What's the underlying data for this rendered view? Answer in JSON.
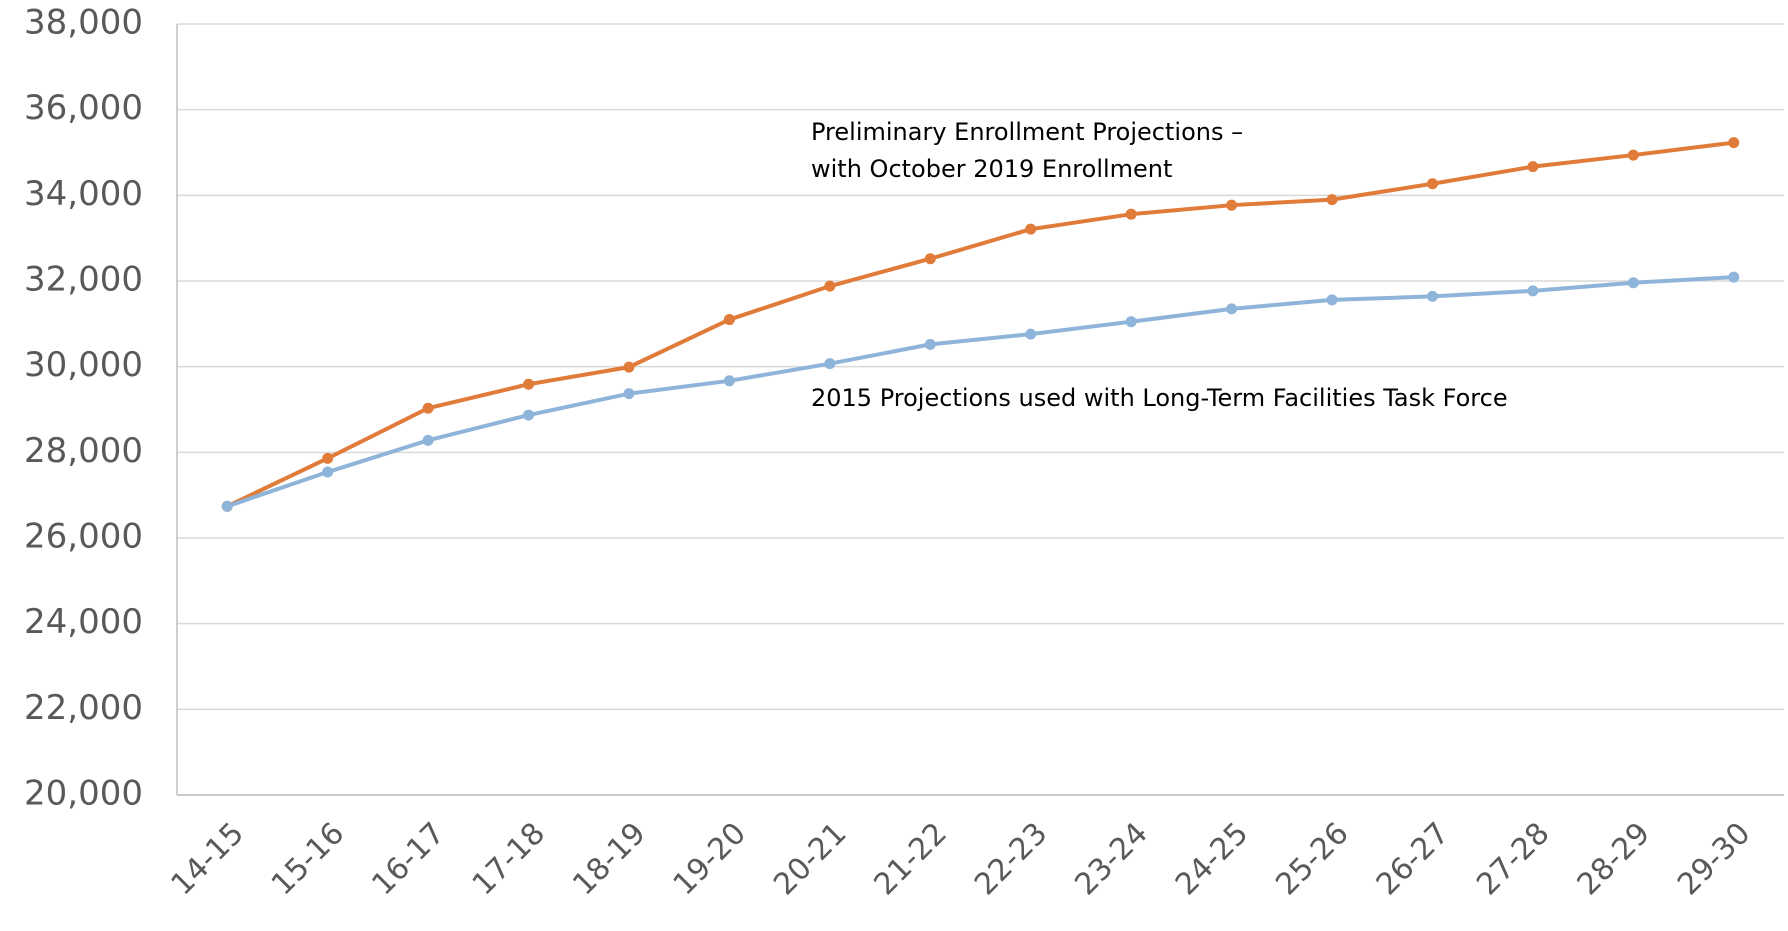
{
  "chart_data": {
    "type": "line",
    "categories": [
      "14-15",
      "15-16",
      "16-17",
      "17-18",
      "18-19",
      "19-20",
      "20-21",
      "21-22",
      "22-23",
      "23-24",
      "24-25",
      "25-26",
      "26-27",
      "27-28",
      "28-29",
      "29-30"
    ],
    "series": [
      {
        "color": "#e07b39",
        "values": [
          26740,
          27860,
          29030,
          29590,
          29990,
          31100,
          31880,
          32520,
          33210,
          33560,
          33770,
          33900,
          34270,
          34670,
          34940,
          35230
        ]
      },
      {
        "color": "#8fb4d9",
        "values": [
          26740,
          27540,
          28280,
          28870,
          29370,
          29670,
          30070,
          30520,
          30760,
          31050,
          31350,
          31560,
          31640,
          31770,
          31960,
          32090
        ]
      }
    ],
    "annotations": [
      {
        "lines": [
          "Preliminary Enrollment Projections –",
          "with October 2019 Enrollment"
        ]
      },
      {
        "lines": [
          "2015 Projections used with Long-Term Facilities Task Force"
        ]
      }
    ],
    "ylim": [
      20000,
      38000
    ],
    "yticks": [
      {
        "value": 20000,
        "label": "20,000"
      },
      {
        "value": 22000,
        "label": "22,000"
      },
      {
        "value": 24000,
        "label": "24,000"
      },
      {
        "value": 26000,
        "label": "26,000"
      },
      {
        "value": 28000,
        "label": "28,000"
      },
      {
        "value": 30000,
        "label": "30,000"
      },
      {
        "value": 32000,
        "label": "32,000"
      },
      {
        "value": 34000,
        "label": "34,000"
      },
      {
        "value": 36000,
        "label": "36,000"
      },
      {
        "value": 38000,
        "label": "38,000"
      }
    ],
    "grid": true
  }
}
